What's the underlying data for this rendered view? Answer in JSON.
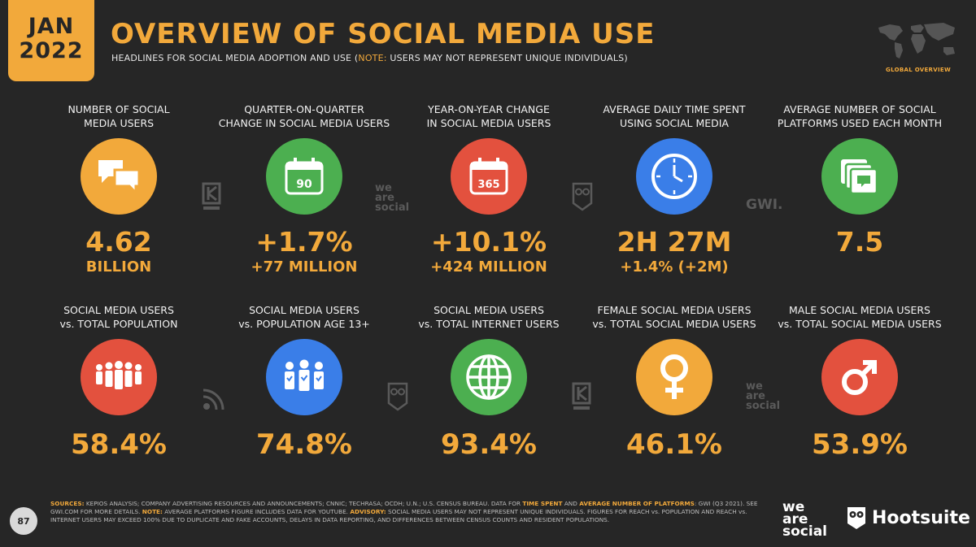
{
  "header": {
    "date_month": "JAN",
    "date_year": "2022",
    "title": "OVERVIEW OF SOCIAL MEDIA USE",
    "subtitle_prefix": "HEADLINES FOR SOCIAL MEDIA ADOPTION AND USE (",
    "subtitle_note": "NOTE:",
    "subtitle_suffix": " USERS MAY NOT REPRESENT UNIQUE INDIVIDUALS)",
    "global_label": "GLOBAL OVERVIEW"
  },
  "metrics_row1": [
    {
      "label_1": "NUMBER OF SOCIAL",
      "label_2": "MEDIA USERS",
      "icon": "speech-bubbles-icon",
      "value": "4.62",
      "sub": "BILLION"
    },
    {
      "label_1": "QUARTER-ON-QUARTER",
      "label_2": "CHANGE IN SOCIAL MEDIA USERS",
      "icon": "calendar-icon",
      "icon_text": "90",
      "value": "+1.7%",
      "sub": "+77 MILLION"
    },
    {
      "label_1": "YEAR-ON-YEAR CHANGE",
      "label_2": "IN SOCIAL MEDIA USERS",
      "icon": "calendar-icon",
      "icon_text": "365",
      "value": "+10.1%",
      "sub": "+424 MILLION"
    },
    {
      "label_1": "AVERAGE DAILY TIME SPENT",
      "label_2": "USING SOCIAL MEDIA",
      "icon": "clock-icon",
      "value": "2H 27M",
      "sub": "+1.4% (+2M)"
    },
    {
      "label_1": "AVERAGE NUMBER OF SOCIAL",
      "label_2": "PLATFORMS USED EACH MONTH",
      "icon": "stacked-chat-icon",
      "value": "7.5",
      "sub": ""
    }
  ],
  "metrics_row2": [
    {
      "label_1": "SOCIAL MEDIA USERS",
      "label_2": "vs. TOTAL POPULATION",
      "icon": "crowd-icon",
      "value": "58.4%"
    },
    {
      "label_1": "SOCIAL MEDIA USERS",
      "label_2": "vs. POPULATION AGE 13+",
      "icon": "verified-people-icon",
      "value": "74.8%"
    },
    {
      "label_1": "SOCIAL MEDIA USERS",
      "label_2": "vs. TOTAL INTERNET USERS",
      "icon": "globe-icon",
      "value": "93.4%"
    },
    {
      "label_1": "FEMALE SOCIAL MEDIA USERS",
      "label_2": "vs. TOTAL SOCIAL MEDIA USERS",
      "icon": "female-symbol-icon",
      "value": "46.1%"
    },
    {
      "label_1": "MALE SOCIAL MEDIA USERS",
      "label_2": "vs. TOTAL SOCIAL MEDIA USERS",
      "icon": "male-symbol-icon",
      "value": "53.9%"
    }
  ],
  "watermarks": {
    "we_are_social": [
      "we",
      "are",
      "social"
    ],
    "gwi": "GWI."
  },
  "footer": {
    "page_number": "87",
    "sources_label": "SOURCES:",
    "sources_text": " KEPIOS ANALYSIS; COMPANY ADVERTISING RESOURCES AND ANNOUNCEMENTS; CNNIC; TECHRASA; OCDH; U.N.; U.S. CENSUS BUREAU. DATA FOR ",
    "time_spent": "TIME SPENT",
    "and_text": " AND ",
    "avg_number": "AVERAGE NUMBER OF PLATFORMS",
    "gwi_text": ": GWI (Q3 2021). SEE GWI.COM FOR MORE DETAILS. ",
    "note_label": "NOTE:",
    "note_text": " AVERAGE PLATFORMS FIGURE INCLUDES DATA FOR YOUTUBE. ",
    "advisory_label": "ADVISORY:",
    "advisory_text": " SOCIAL MEDIA USERS MAY NOT REPRESENT UNIQUE INDIVIDUALS. FIGURES FOR REACH vs. POPULATION AND REACH vs. INTERNET USERS MAY EXCEED 100% DUE TO DUPLICATE AND FAKE ACCOUNTS, DELAYS IN DATA REPORTING, AND DIFFERENCES BETWEEN CENSUS COUNTS AND RESIDENT POPULATIONS.",
    "we_are_social": [
      "we",
      "are",
      "social"
    ],
    "hootsuite": "Hootsuite"
  },
  "colors": {
    "accent": "#f2a93b",
    "background": "#262626",
    "green": "#4caf50",
    "red": "#e3513e",
    "blue": "#3a7ee8"
  }
}
